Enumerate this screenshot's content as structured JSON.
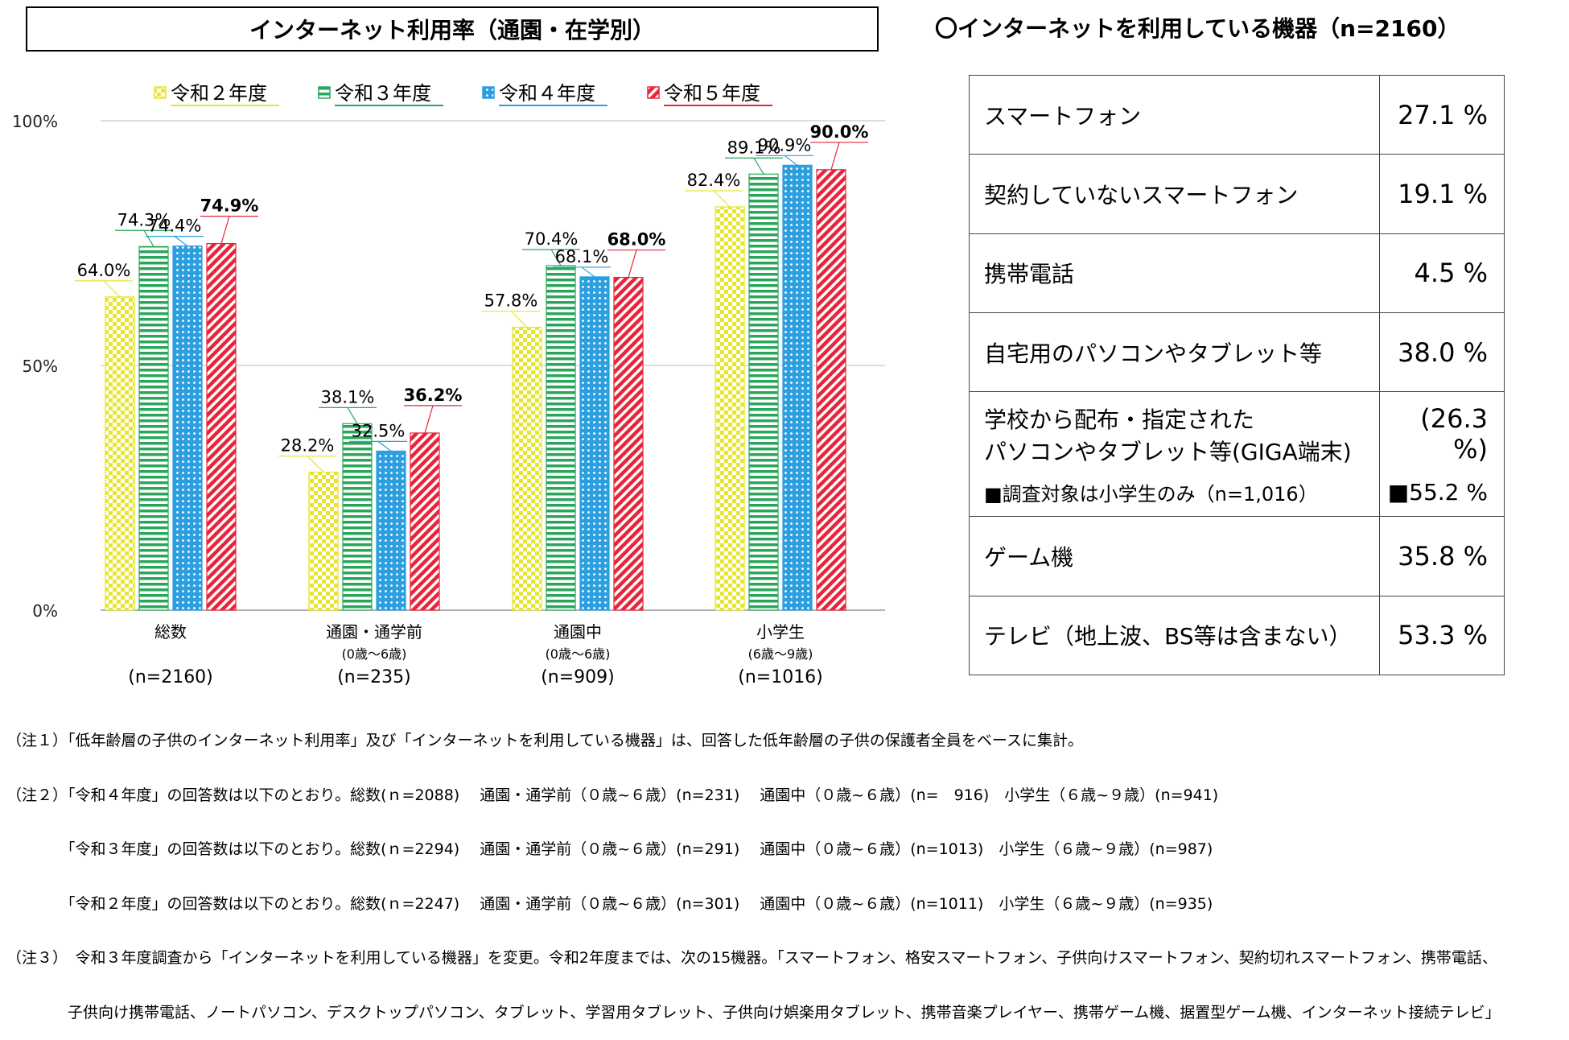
{
  "left_title": "インターネット利用率（通園・在学別）",
  "right_title": "〇インターネットを利用している機器（n=2160）",
  "chart_data": {
    "type": "bar",
    "ylim": [
      0,
      100
    ],
    "yticks": [
      "0%",
      "50%",
      "100%"
    ],
    "categories": [
      "総数",
      "通園・通学前",
      "通園中",
      "小学生"
    ],
    "category_sub": [
      "",
      "(0歳～6歳)",
      "(0歳～6歳)",
      "(6歳～9歳)"
    ],
    "category_n": [
      "(n=2160)",
      "(n=235)",
      "(n=909)",
      "(n=1016)"
    ],
    "series": [
      {
        "name": "令和２年度",
        "color": "#e6e62e",
        "pattern": "check",
        "values": [
          64.0,
          28.2,
          57.8,
          82.4
        ],
        "labels": [
          "64.0%",
          "28.2%",
          "57.8%",
          "82.4%"
        ]
      },
      {
        "name": "令和３年度",
        "color": "#2aa65a",
        "pattern": "hstripe",
        "values": [
          74.3,
          38.1,
          70.4,
          89.1
        ],
        "labels": [
          "74.3%",
          "38.1%",
          "70.4%",
          "89.1%"
        ]
      },
      {
        "name": "令和４年度",
        "color": "#2b9fe0",
        "pattern": "dots",
        "values": [
          74.4,
          32.5,
          68.1,
          90.9
        ],
        "labels": [
          "74.4%",
          "32.5%",
          "68.1%",
          "90.9%"
        ]
      },
      {
        "name": "令和５年度",
        "color": "#e8243c",
        "pattern": "diag",
        "values": [
          74.9,
          36.2,
          68.0,
          90.0
        ],
        "labels": [
          "74.9%",
          "36.2%",
          "68.0%",
          "90.0%"
        ]
      }
    ]
  },
  "devices": [
    {
      "label": "スマートフォン",
      "value": "27.1 %"
    },
    {
      "label": "契約していないスマートフォン",
      "value": "19.1 %"
    },
    {
      "label": "携帯電話",
      "value": "4.5 %"
    },
    {
      "label": "自宅用のパソコンやタブレット等",
      "value": "38.0 %"
    },
    {
      "label_line1": "学校から配布・指定された",
      "label_line2": "パソコンやタブレット等(GIGA端末)",
      "sub_label": "■調査対象は小学生のみ（n=1,016）",
      "value": "(26.3 %)",
      "sub_value": "■55.2 %"
    },
    {
      "label": "ゲーム機",
      "value": "35.8 %"
    },
    {
      "label": "テレビ（地上波、BS等は含まない）",
      "value": "53.3 %"
    }
  ],
  "notes": [
    "（注１）「低年齢層の子供のインターネット利用率」及び「インターネットを利用している機器」は、回答した低年齢層の子供の保護者全員をベースに集計。",
    "（注２）「令和４年度」の回答数は以下のとおり。総数(ｎ=2088)　 通園・通学前（０歳~６歳）(n=231)　 通園中（０歳~６歳）(n=　916)　小学生（６歳~９歳）(n=941)",
    "　　　　「令和３年度」の回答数は以下のとおり。総数(ｎ=2294)　 通園・通学前（０歳~６歳）(n=291)　 通園中（０歳~６歳）(n=1013)　小学生（６歳~９歳）(n=987)",
    "　　　　「令和２年度」の回答数は以下のとおり。総数(ｎ=2247)　 通園・通学前（０歳~６歳）(n=301)　 通園中（０歳~６歳）(n=1011)　小学生（６歳~９歳）(n=935)",
    "（注３）　令和３年度調査から「インターネットを利用している機器」を変更。令和2年度までは、次の15機器。「スマートフォン、格安スマートフォン、子供向けスマートフォン、契約切れスマートフォン、携帯電話、",
    "　　　　子供向け携帯電話、ノートパソコン、デスクトップパソコン、タブレット、学習用タブレット、子供向け娯楽用タブレット、携帯音楽プレイヤー、携帯ゲーム機、据置型ゲーム機、インターネット接続テレビ」"
  ]
}
